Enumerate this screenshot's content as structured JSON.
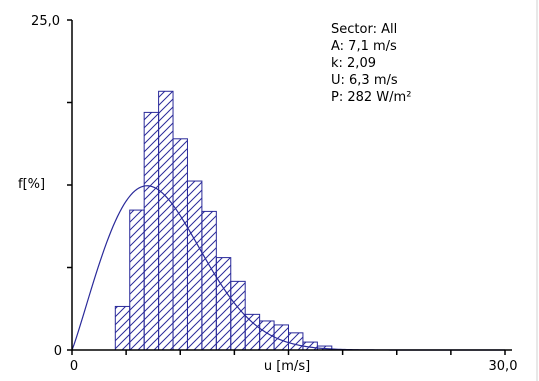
{
  "chart_data": {
    "type": "bar",
    "ylabel": "f[%]",
    "xlabel": "u [m/s]",
    "x_tick_labels": [
      {
        "value": 0,
        "label": "0"
      },
      {
        "value": 30,
        "label": "30,0"
      }
    ],
    "y_tick_labels": [
      {
        "value": 0,
        "label": "0"
      },
      {
        "value": 25,
        "label": "25,0"
      }
    ],
    "xlim": [
      0,
      30
    ],
    "ylim": [
      0,
      25
    ],
    "x_minor_ticks": [
      0,
      3.75,
      7.5,
      11.25,
      15,
      18.75,
      22.5,
      26.25,
      30
    ],
    "y_minor_ticks": [
      0,
      6.25,
      12.5,
      18.75,
      25
    ],
    "bin_width": 1,
    "bins": [
      {
        "x0": 3,
        "value": 3.3
      },
      {
        "x0": 4,
        "value": 10.6
      },
      {
        "x0": 5,
        "value": 18.0
      },
      {
        "x0": 6,
        "value": 19.6
      },
      {
        "x0": 7,
        "value": 16.0
      },
      {
        "x0": 8,
        "value": 12.8
      },
      {
        "x0": 9,
        "value": 10.5
      },
      {
        "x0": 10,
        "value": 7.0
      },
      {
        "x0": 11,
        "value": 5.2
      },
      {
        "x0": 12,
        "value": 2.7
      },
      {
        "x0": 13,
        "value": 2.2
      },
      {
        "x0": 14,
        "value": 1.9
      },
      {
        "x0": 15,
        "value": 1.3
      },
      {
        "x0": 16,
        "value": 0.6
      },
      {
        "x0": 17,
        "value": 0.3
      }
    ],
    "weibull_curve": {
      "A": 7.1,
      "k": 2.09
    },
    "grid": false,
    "bar_color": "#2a2a9a",
    "curve_color": "#2a2a9a",
    "info_box": {
      "sector": "Sector: All",
      "A": "A: 7,1 m/s",
      "k": "k: 2,09",
      "U": "U: 6,3 m/s",
      "P": "P: 282 W/m²"
    }
  }
}
